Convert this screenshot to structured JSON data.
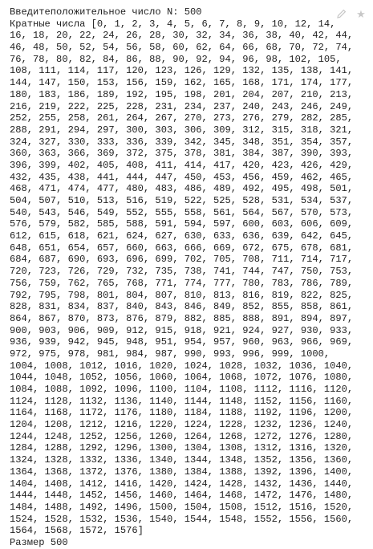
{
  "prompt": {
    "label": "Введитеположительное число N: ",
    "value": "500"
  },
  "multiples": {
    "label": "Кратные числа ",
    "value": "[0, 1, 2, 3, 4, 5, 6, 7, 8, 9, 10, 12, 14, 16, 18, 20, 22, 24, 26, 28, 30, 32, 34, 36, 38, 40, 42, 44, 46, 48, 50, 52, 54, 56, 58, 60, 62, 64, 66, 68, 70, 72, 74, 76, 78, 80, 82, 84, 86, 88, 90, 92, 94, 96, 98, 102, 105, 108, 111, 114, 117, 120, 123, 126, 129, 132, 135, 138, 141, 144, 147, 150, 153, 156, 159, 162, 165, 168, 171, 174, 177, 180, 183, 186, 189, 192, 195, 198, 201, 204, 207, 210, 213, 216, 219, 222, 225, 228, 231, 234, 237, 240, 243, 246, 249, 252, 255, 258, 261, 264, 267, 270, 273, 276, 279, 282, 285, 288, 291, 294, 297, 300, 303, 306, 309, 312, 315, 318, 321, 324, 327, 330, 333, 336, 339, 342, 345, 348, 351, 354, 357, 360, 363, 366, 369, 372, 375, 378, 381, 384, 387, 390, 393, 396, 399, 402, 405, 408, 411, 414, 417, 420, 423, 426, 429, 432, 435, 438, 441, 444, 447, 450, 453, 456, 459, 462, 465, 468, 471, 474, 477, 480, 483, 486, 489, 492, 495, 498, 501, 504, 507, 510, 513, 516, 519, 522, 525, 528, 531, 534, 537, 540, 543, 546, 549, 552, 555, 558, 561, 564, 567, 570, 573, 576, 579, 582, 585, 588, 591, 594, 597, 600, 603, 606, 609, 612, 615, 618, 621, 624, 627, 630, 633, 636, 639, 642, 645, 648, 651, 654, 657, 660, 663, 666, 669, 672, 675, 678, 681, 684, 687, 690, 693, 696, 699, 702, 705, 708, 711, 714, 717, 720, 723, 726, 729, 732, 735, 738, 741, 744, 747, 750, 753, 756, 759, 762, 765, 768, 771, 774, 777, 780, 783, 786, 789, 792, 795, 798, 801, 804, 807, 810, 813, 816, 819, 822, 825, 828, 831, 834, 837, 840, 843, 846, 849, 852, 855, 858, 861, 864, 867, 870, 873, 876, 879, 882, 885, 888, 891, 894, 897, 900, 903, 906, 909, 912, 915, 918, 921, 924, 927, 930, 933, 936, 939, 942, 945, 948, 951, 954, 957, 960, 963, 966, 969, 972, 975, 978, 981, 984, 987, 990, 993, 996, 999, 1000, 1004, 1008, 1012, 1016, 1020, 1024, 1028, 1032, 1036, 1040, 1044, 1048, 1052, 1056, 1060, 1064, 1068, 1072, 1076, 1080, 1084, 1088, 1092, 1096, 1100, 1104, 1108, 1112, 1116, 1120, 1124, 1128, 1132, 1136, 1140, 1144, 1148, 1152, 1156, 1160, 1164, 1168, 1172, 1176, 1180, 1184, 1188, 1192, 1196, 1200, 1204, 1208, 1212, 1216, 1220, 1224, 1228, 1232, 1236, 1240, 1244, 1248, 1252, 1256, 1260, 1264, 1268, 1272, 1276, 1280, 1284, 1288, 1292, 1296, 1300, 1304, 1308, 1312, 1316, 1320, 1324, 1328, 1332, 1336, 1340, 1344, 1348, 1352, 1356, 1360, 1364, 1368, 1372, 1376, 1380, 1384, 1388, 1392, 1396, 1400, 1404, 1408, 1412, 1416, 1420, 1424, 1428, 1432, 1436, 1440, 1444, 1448, 1452, 1456, 1460, 1464, 1468, 1472, 1476, 1480, 1484, 1488, 1492, 1496, 1500, 1504, 1508, 1512, 1516, 1520, 1524, 1528, 1532, 1536, 1540, 1544, 1548, 1552, 1556, 1560, 1564, 1568, 1572, 1576]"
  },
  "size": {
    "label": "Размер ",
    "value": "500"
  },
  "toolbar": {
    "icons": [
      "pencil-icon",
      "star-icon"
    ],
    "color": "#c7c7c7"
  }
}
